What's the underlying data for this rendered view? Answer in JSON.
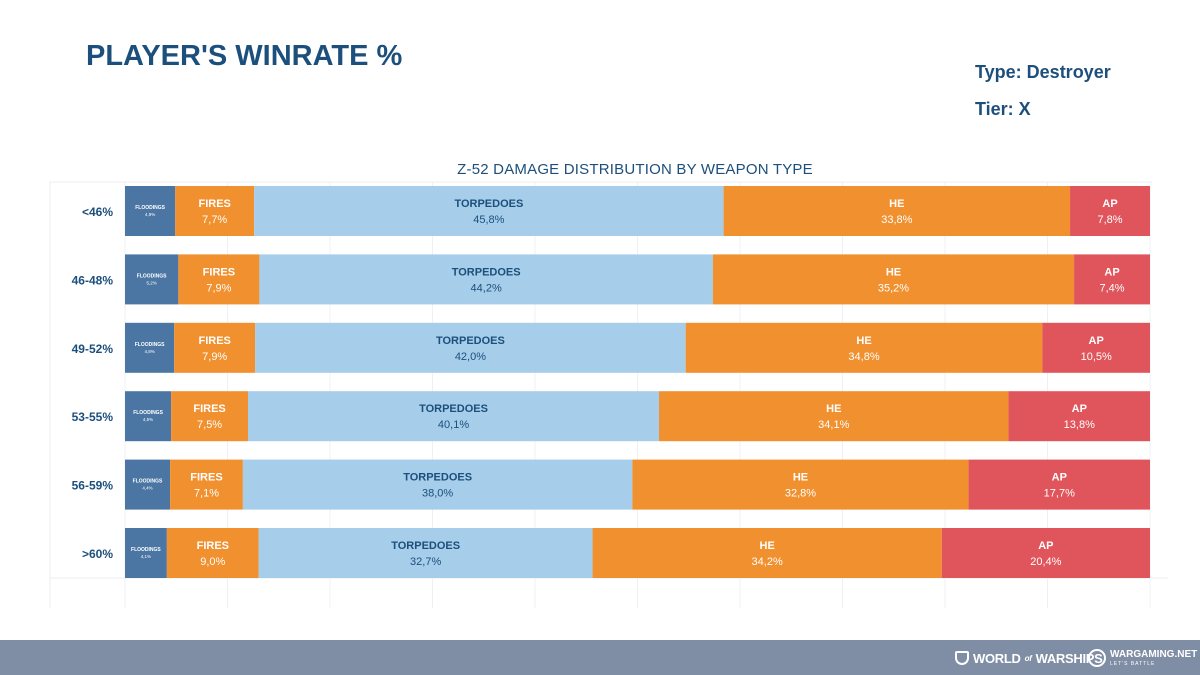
{
  "header": {
    "title": "PLAYER'S WINRATE %",
    "type_label": "Type: Destroyer",
    "tier_label": "Tier: X"
  },
  "colors": {
    "title": "#1c4f7c",
    "floodings": "#4b76a3",
    "fires": "#f0902e",
    "torpedoes": "#a6cde9",
    "he": "#f0902e",
    "ap": "#e0555b",
    "footer": "#7f8ea4"
  },
  "chart_data": {
    "type": "bar",
    "orientation": "horizontal",
    "stacked": true,
    "title": "Z-52 DAMAGE DISTRIBUTION BY WEAPON TYPE",
    "categories": [
      "<46%",
      "46-48%",
      "49-52%",
      "53-55%",
      "56-59%",
      ">60%"
    ],
    "series": [
      {
        "name": "FLOODINGS",
        "values": [
          4.9,
          5.2,
          4.8,
          4.5,
          4.4,
          4.1
        ],
        "labels": [
          "4,9%",
          "5,2%",
          "4,8%",
          "4,5%",
          "4,4%",
          "4,1%"
        ]
      },
      {
        "name": "FIRES",
        "values": [
          7.7,
          7.9,
          7.9,
          7.5,
          7.1,
          9.0
        ],
        "labels": [
          "7,7%",
          "7,9%",
          "7,9%",
          "7,5%",
          "7,1%",
          "9,0%"
        ]
      },
      {
        "name": "TORPEDOES",
        "values": [
          45.8,
          44.2,
          42.0,
          40.1,
          38.0,
          32.7
        ],
        "labels": [
          "45,8%",
          "44,2%",
          "42,0%",
          "40,1%",
          "38,0%",
          "32,7%"
        ]
      },
      {
        "name": "HE",
        "values": [
          33.8,
          35.2,
          34.8,
          34.1,
          32.8,
          34.2
        ],
        "labels": [
          "33,8%",
          "35,2%",
          "34,8%",
          "34,1%",
          "32,8%",
          "34,2%"
        ]
      },
      {
        "name": "AP",
        "values": [
          7.8,
          7.4,
          10.5,
          13.8,
          17.7,
          20.4
        ],
        "labels": [
          "7,8%",
          "7,4%",
          "10,5%",
          "13,8%",
          "17,7%",
          "20,4%"
        ]
      }
    ],
    "xlim": [
      0,
      100
    ],
    "grid": true,
    "legend": "none"
  },
  "footer": {
    "logo_world_of_warships": "WORLD of WARSHIPS",
    "logo_wows_main": "WORLD",
    "logo_wows_of": "of",
    "logo_wows_end": "WARSHIPS",
    "logo_wargaming": "WARGAMING.NET",
    "logo_wargaming_tagline": "LET'S BATTLE"
  }
}
